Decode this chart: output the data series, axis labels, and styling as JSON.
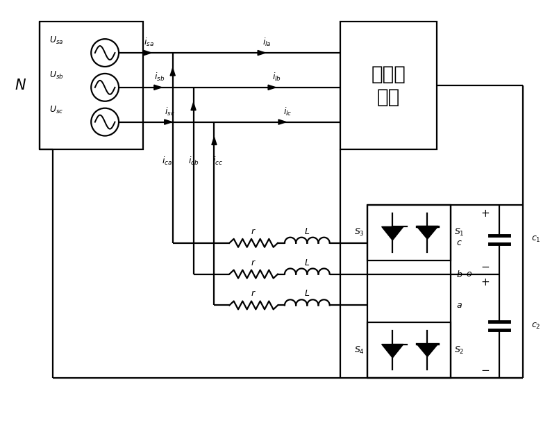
{
  "figsize": [
    8.05,
    6.19
  ],
  "dpi": 100,
  "lw": 1.6,
  "load_text": "非线性\n负荷"
}
